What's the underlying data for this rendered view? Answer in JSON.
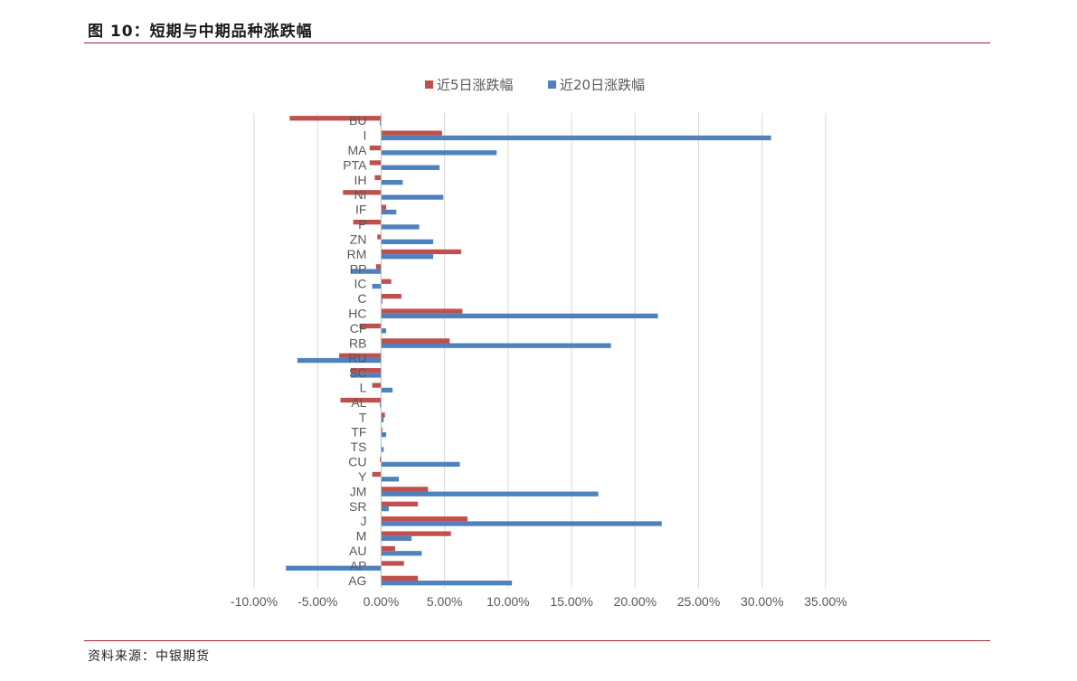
{
  "header": {
    "title": "图 10：短期与中期品种涨跌幅"
  },
  "footer": {
    "source": "资料来源：中银期货"
  },
  "chart_data": {
    "type": "bar",
    "orientation": "horizontal",
    "title": "",
    "xlabel": "",
    "ylabel": "",
    "xlim": [
      -0.1,
      0.35
    ],
    "x_ticks": [
      "-10.00%",
      "-5.00%",
      "0.00%",
      "5.00%",
      "10.00%",
      "15.00%",
      "20.00%",
      "25.00%",
      "30.00%",
      "35.00%"
    ],
    "grid": true,
    "legend_position": "top",
    "categories": [
      "BU",
      "I",
      "MA",
      "PTA",
      "IH",
      "NI",
      "IF",
      "P",
      "ZN",
      "RM",
      "PP",
      "IC",
      "C",
      "HC",
      "CF",
      "RB",
      "RU",
      "SC",
      "L",
      "AL",
      "T",
      "TF",
      "TS",
      "CU",
      "Y",
      "JM",
      "SR",
      "J",
      "M",
      "AU",
      "AP",
      "AG"
    ],
    "series": [
      {
        "name": "近5日涨跌幅",
        "color": "#c0504d",
        "values": [
          -0.072,
          0.048,
          -0.009,
          -0.009,
          -0.005,
          -0.03,
          0.004,
          -0.022,
          -0.003,
          0.063,
          -0.004,
          0.008,
          0.016,
          0.064,
          -0.017,
          0.054,
          -0.033,
          -0.024,
          -0.007,
          -0.032,
          0.003,
          0.001,
          0.0,
          -0.001,
          -0.007,
          0.037,
          0.029,
          0.068,
          0.055,
          0.011,
          0.018,
          0.029
        ]
      },
      {
        "name": "近20日涨跌幅",
        "color": "#4f81bd",
        "values": [
          -0.001,
          0.307,
          0.091,
          0.046,
          0.017,
          0.049,
          0.012,
          0.03,
          0.041,
          0.041,
          -0.024,
          -0.007,
          0.001,
          0.218,
          0.004,
          0.181,
          -0.066,
          -0.024,
          0.009,
          -0.001,
          0.002,
          0.004,
          0.002,
          0.062,
          0.014,
          0.171,
          0.006,
          0.221,
          0.024,
          0.032,
          -0.075,
          0.103
        ]
      }
    ]
  }
}
